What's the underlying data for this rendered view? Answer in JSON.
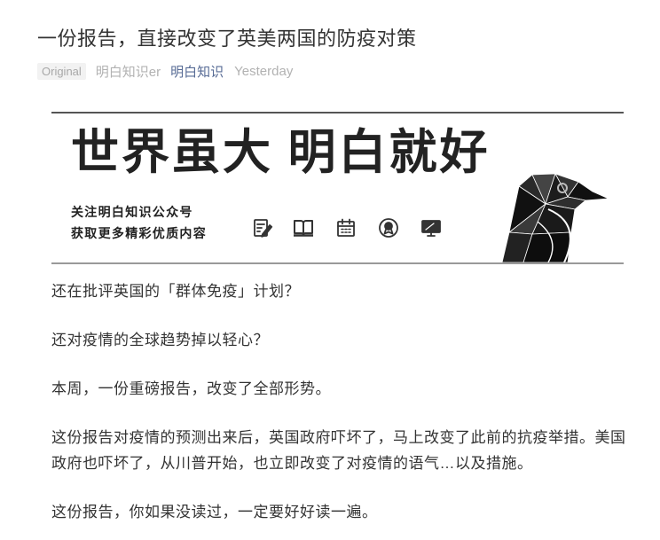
{
  "article": {
    "title": "一份报告，直接改变了英美两国的防疫对策",
    "meta": {
      "original_label": "Original",
      "author": "明白知识er",
      "account": "明白知识",
      "time": "Yesterday"
    },
    "banner": {
      "headline": "世界虽大 明白就好",
      "slogan_line1": "关注明白知识公众号",
      "slogan_line2": "获取更多精彩优质内容",
      "icons": [
        "edit-document-icon",
        "book-icon",
        "calendar-icon",
        "award-badge-icon",
        "monitor-icon"
      ],
      "illustration": "geometric-black-bird"
    },
    "paragraphs": [
      "还在批评英国的「群体免疫」计划？",
      "还对疫情的全球趋势掉以轻心？",
      "本周，一份重磅报告，改变了全部形势。",
      "这份报告对疫情的预测出来后，英国政府吓坏了，马上改变了此前的抗疫举措。美国政府也吓坏了，从川普开始，也立即改变了对疫情的语气…以及措施。",
      "这份报告，你如果没读过，一定要好好读一遍。"
    ]
  },
  "colors": {
    "text": "#333333",
    "meta_gray": "#b2b2b2",
    "link": "#576b95",
    "badge_bg": "#f2f2f2"
  }
}
